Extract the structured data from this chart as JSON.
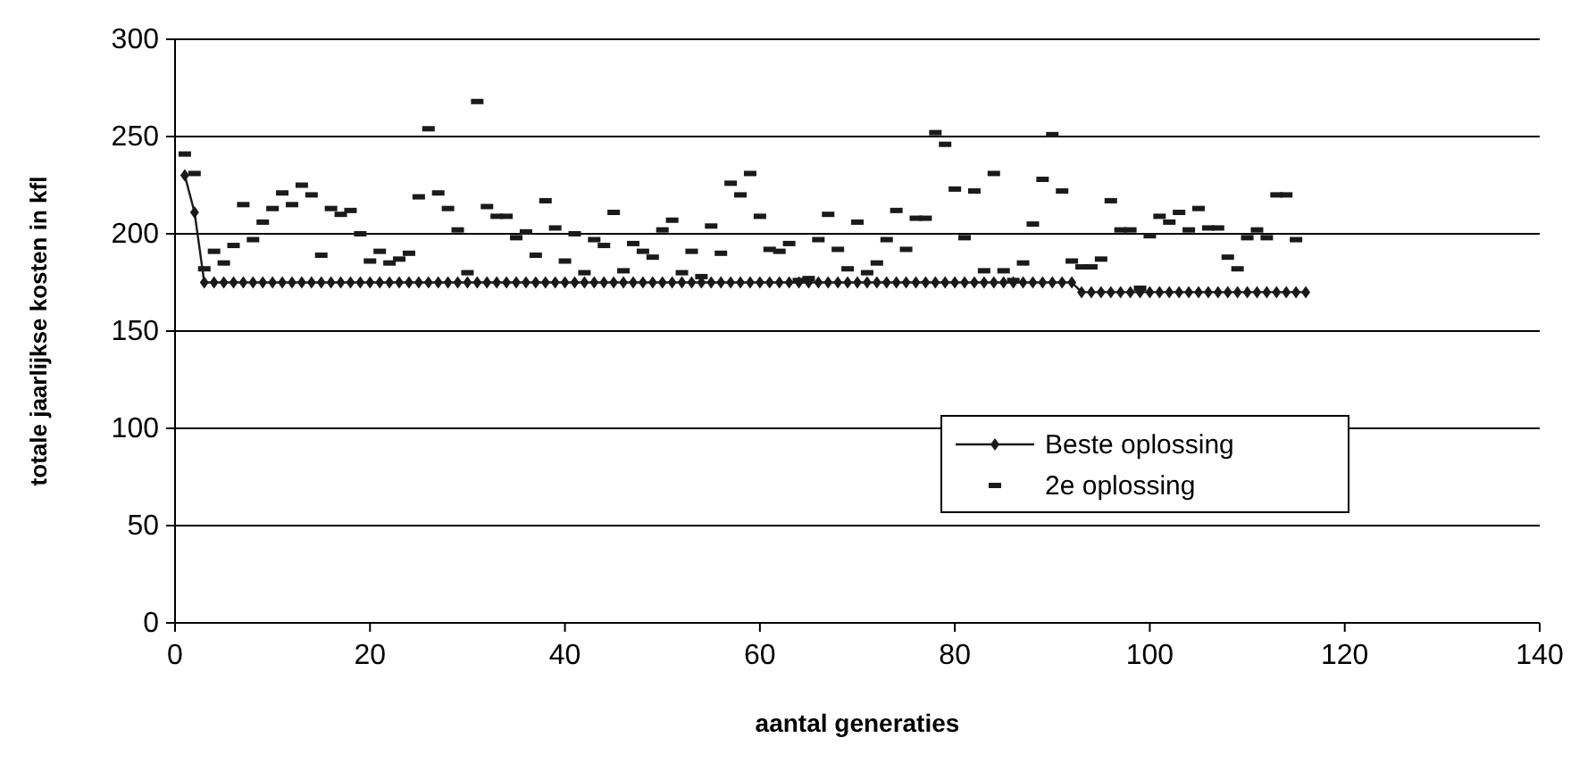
{
  "chart_data": {
    "type": "line",
    "xlabel": "aantal generaties",
    "ylabel": "totale jaarlijkse kosten in kfl",
    "x": [
      1,
      2,
      3,
      4,
      5,
      6,
      7,
      8,
      9,
      10,
      11,
      12,
      13,
      14,
      15,
      16,
      17,
      18,
      19,
      20,
      21,
      22,
      23,
      24,
      25,
      26,
      27,
      28,
      29,
      30,
      31,
      32,
      33,
      34,
      35,
      36,
      37,
      38,
      39,
      40,
      41,
      42,
      43,
      44,
      45,
      46,
      47,
      48,
      49,
      50,
      51,
      52,
      53,
      54,
      55,
      56,
      57,
      58,
      59,
      60,
      61,
      62,
      63,
      64,
      65,
      66,
      67,
      68,
      69,
      70,
      71,
      72,
      73,
      74,
      75,
      76,
      77,
      78,
      79,
      80,
      81,
      82,
      83,
      84,
      85,
      86,
      87,
      88,
      89,
      90,
      91,
      92,
      93,
      94,
      95,
      96,
      97,
      98,
      99,
      100,
      101,
      102,
      103,
      104,
      105,
      106,
      107,
      108,
      109,
      110,
      111,
      112,
      113,
      114,
      115,
      116
    ],
    "xlim": [
      0,
      140
    ],
    "xticks": [
      0,
      20,
      40,
      60,
      80,
      100,
      120,
      140
    ],
    "ylim": [
      0,
      300
    ],
    "yticks": [
      0,
      50,
      100,
      150,
      200,
      250,
      300
    ],
    "grid": "y",
    "legend": "right",
    "series": [
      {
        "name": "Beste oplossing",
        "marker": "diamond",
        "color": "#1a1a1a",
        "values": [
          230,
          211,
          175,
          175,
          175,
          175,
          175,
          175,
          175,
          175,
          175,
          175,
          175,
          175,
          175,
          175,
          175,
          175,
          175,
          175,
          175,
          175,
          175,
          175,
          175,
          175,
          175,
          175,
          175,
          175,
          175,
          175,
          175,
          175,
          175,
          175,
          175,
          175,
          175,
          175,
          175,
          175,
          175,
          175,
          175,
          175,
          175,
          175,
          175,
          175,
          175,
          175,
          175,
          175,
          175,
          175,
          175,
          175,
          175,
          175,
          175,
          175,
          175,
          175,
          175,
          175,
          175,
          175,
          175,
          175,
          175,
          175,
          175,
          175,
          175,
          175,
          175,
          175,
          175,
          175,
          175,
          175,
          175,
          175,
          175,
          175,
          175,
          175,
          175,
          175,
          175,
          175,
          170,
          170,
          170,
          170,
          170,
          170,
          170,
          170,
          170,
          170,
          170,
          170,
          170,
          170,
          170,
          170,
          170,
          170,
          170,
          170,
          170,
          170,
          170,
          170
        ]
      },
      {
        "name": "2e oplossing",
        "type": "scatter",
        "marker": "square",
        "color": "#1a1a1a",
        "values": [
          241,
          231,
          182,
          191,
          185,
          194,
          215,
          197,
          206,
          213,
          221,
          215,
          225,
          220,
          189,
          213,
          210,
          212,
          200,
          186,
          191,
          185,
          187,
          190,
          219,
          254,
          221,
          213,
          202,
          180,
          268,
          214,
          209,
          209,
          198,
          201,
          189,
          217,
          203,
          186,
          200,
          180,
          197,
          194,
          211,
          181,
          195,
          191,
          188,
          202,
          207,
          180,
          191,
          178,
          204,
          190,
          226,
          220,
          231,
          209,
          192,
          191,
          195,
          176,
          177,
          197,
          210,
          192,
          182,
          206,
          180,
          185,
          197,
          212,
          192,
          208,
          208,
          252,
          246,
          223,
          198,
          222,
          181,
          231,
          181,
          176,
          185,
          205,
          228,
          251,
          222,
          186,
          183,
          183,
          187,
          217,
          202,
          202,
          172,
          199,
          209,
          206,
          211,
          202,
          213,
          203,
          203,
          188,
          182,
          198,
          202,
          198,
          220,
          220,
          197,
          null
        ]
      }
    ]
  }
}
